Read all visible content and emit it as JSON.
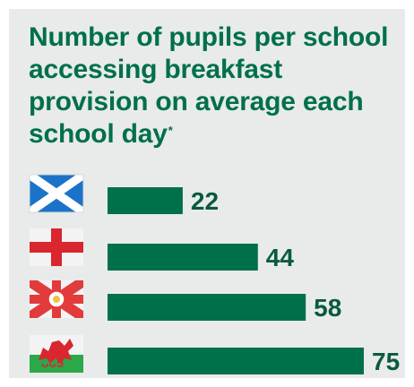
{
  "title": "Number of pupils per school accessing breakfast provision on average each school day",
  "title_footnote_marker": "*",
  "colors": {
    "background": "#e8ebea",
    "title": "#00704a",
    "bar": "#00704a",
    "value_text": "#0a5a3c"
  },
  "chart_data": {
    "type": "bar",
    "orientation": "horizontal",
    "title": "Number of pupils per school accessing breakfast provision on average each school day",
    "categories": [
      "Scotland",
      "England",
      "Northern Ireland",
      "Wales"
    ],
    "category_icons": [
      "scotland-flag-icon",
      "england-flag-icon",
      "northern-ireland-flag-icon",
      "wales-flag-icon"
    ],
    "values": [
      22,
      44,
      58,
      75
    ],
    "data_labels": [
      "22",
      "44",
      "58",
      "75"
    ],
    "xlabel": "",
    "ylabel": "",
    "xlim": [
      0,
      80
    ],
    "grid": false,
    "legend": "none"
  }
}
